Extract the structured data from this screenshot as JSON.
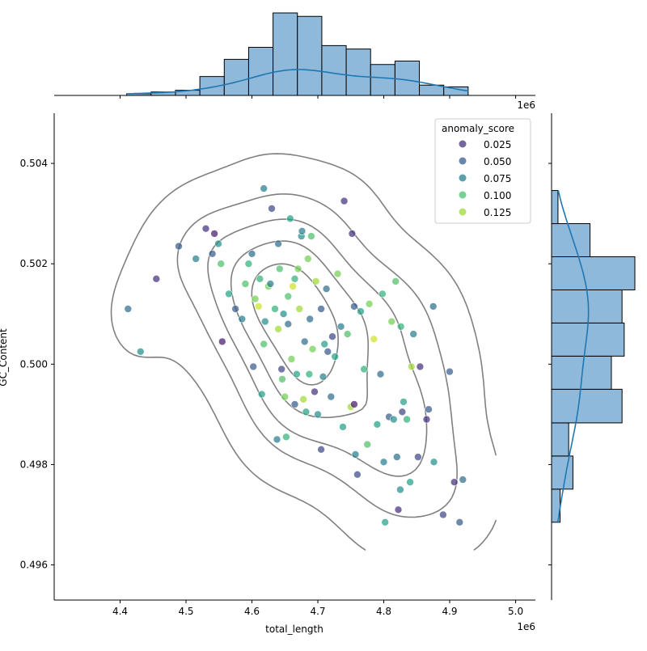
{
  "chart_data": {
    "type": "scatter",
    "subtype": "jointplot with kde contours and marginal histograms",
    "xlabel": "total_length",
    "ylabel": "GC_Content",
    "x_offset_label": "1e6",
    "xlim": [
      4.3,
      5.03
    ],
    "ylim": [
      0.4953,
      0.505
    ],
    "xticks": [
      4.4,
      4.5,
      4.6,
      4.7,
      4.8,
      4.9,
      5.0
    ],
    "xtick_labels": [
      "4.4",
      "4.5",
      "4.6",
      "4.7",
      "4.8",
      "4.9",
      "5.0"
    ],
    "yticks": [
      0.496,
      0.498,
      0.5,
      0.502,
      0.504
    ],
    "ytick_labels": [
      "0.496",
      "0.498",
      "0.500",
      "0.502",
      "0.504"
    ],
    "legend": {
      "title": "anomaly_score",
      "placement": "top-right",
      "entries": [
        {
          "label": "0.025",
          "color": "#46337e"
        },
        {
          "label": "0.050",
          "color": "#365c8d"
        },
        {
          "label": "0.075",
          "color": "#277f8e"
        },
        {
          "label": "0.100",
          "color": "#4ac16d"
        },
        {
          "label": "0.125",
          "color": "#a0da39"
        }
      ]
    },
    "colors": {
      "kde_contour": "#808080",
      "hist_fill": "#8fb9da",
      "hist_edge": "#000000",
      "marginal_kde": "#1f77b4"
    },
    "points": [
      [
        4.412,
        0.5011,
        0.06
      ],
      [
        4.431,
        0.50025,
        0.08
      ],
      [
        4.455,
        0.5017,
        0.03
      ],
      [
        4.489,
        0.50235,
        0.05
      ],
      [
        4.515,
        0.5021,
        0.07
      ],
      [
        4.53,
        0.5027,
        0.03
      ],
      [
        4.543,
        0.5026,
        0.02
      ],
      [
        4.54,
        0.5022,
        0.05
      ],
      [
        4.549,
        0.5024,
        0.08
      ],
      [
        4.553,
        0.502,
        0.11
      ],
      [
        4.555,
        0.50045,
        0.02
      ],
      [
        4.565,
        0.5014,
        0.09
      ],
      [
        4.575,
        0.5011,
        0.05
      ],
      [
        4.585,
        0.5009,
        0.07
      ],
      [
        4.59,
        0.5016,
        0.11
      ],
      [
        4.595,
        0.502,
        0.1
      ],
      [
        4.6,
        0.5022,
        0.06
      ],
      [
        4.602,
        0.49995,
        0.05
      ],
      [
        4.605,
        0.5013,
        0.12
      ],
      [
        4.61,
        0.50115,
        0.14
      ],
      [
        4.612,
        0.5017,
        0.1
      ],
      [
        4.615,
        0.4994,
        0.09
      ],
      [
        4.618,
        0.5004,
        0.11
      ],
      [
        4.62,
        0.50085,
        0.08
      ],
      [
        4.625,
        0.50155,
        0.12
      ],
      [
        4.628,
        0.5016,
        0.07
      ],
      [
        4.63,
        0.5031,
        0.04
      ],
      [
        4.618,
        0.5035,
        0.07
      ],
      [
        4.635,
        0.5011,
        0.1
      ],
      [
        4.638,
        0.4985,
        0.07
      ],
      [
        4.64,
        0.5024,
        0.06
      ],
      [
        4.64,
        0.5007,
        0.13
      ],
      [
        4.642,
        0.5019,
        0.11
      ],
      [
        4.645,
        0.4999,
        0.04
      ],
      [
        4.646,
        0.4997,
        0.11
      ],
      [
        4.648,
        0.501,
        0.08
      ],
      [
        4.65,
        0.49935,
        0.12
      ],
      [
        4.652,
        0.49855,
        0.1
      ],
      [
        4.655,
        0.5008,
        0.06
      ],
      [
        4.655,
        0.50135,
        0.11
      ],
      [
        4.658,
        0.5029,
        0.09
      ],
      [
        4.66,
        0.5001,
        0.12
      ],
      [
        4.662,
        0.50155,
        0.14
      ],
      [
        4.665,
        0.4992,
        0.05
      ],
      [
        4.665,
        0.5017,
        0.1
      ],
      [
        4.668,
        0.4998,
        0.09
      ],
      [
        4.67,
        0.5019,
        0.12
      ],
      [
        4.672,
        0.5011,
        0.13
      ],
      [
        4.675,
        0.50255,
        0.08
      ],
      [
        4.676,
        0.50265,
        0.07
      ],
      [
        4.678,
        0.4993,
        0.13
      ],
      [
        4.68,
        0.50045,
        0.06
      ],
      [
        4.682,
        0.49905,
        0.09
      ],
      [
        4.685,
        0.5021,
        0.12
      ],
      [
        4.687,
        0.4998,
        0.1
      ],
      [
        4.688,
        0.5009,
        0.06
      ],
      [
        4.69,
        0.50255,
        0.11
      ],
      [
        4.692,
        0.5003,
        0.12
      ],
      [
        4.695,
        0.49945,
        0.03
      ],
      [
        4.697,
        0.50165,
        0.13
      ],
      [
        4.7,
        0.499,
        0.08
      ],
      [
        4.705,
        0.4983,
        0.04
      ],
      [
        4.705,
        0.5011,
        0.05
      ],
      [
        4.708,
        0.49975,
        0.07
      ],
      [
        4.71,
        0.5004,
        0.09
      ],
      [
        4.713,
        0.5015,
        0.06
      ],
      [
        4.715,
        0.50025,
        0.05
      ],
      [
        4.72,
        0.49935,
        0.06
      ],
      [
        4.722,
        0.50055,
        0.04
      ],
      [
        4.726,
        0.50015,
        0.09
      ],
      [
        4.73,
        0.5018,
        0.12
      ],
      [
        4.735,
        0.50075,
        0.07
      ],
      [
        4.738,
        0.49875,
        0.09
      ],
      [
        4.74,
        0.50325,
        0.03
      ],
      [
        4.745,
        0.5006,
        0.11
      ],
      [
        4.75,
        0.49915,
        0.13
      ],
      [
        4.752,
        0.5026,
        0.03
      ],
      [
        4.755,
        0.4992,
        0.02
      ],
      [
        4.755,
        0.50115,
        0.05
      ],
      [
        4.757,
        0.4982,
        0.07
      ],
      [
        4.76,
        0.4978,
        0.04
      ],
      [
        4.765,
        0.50105,
        0.09
      ],
      [
        4.77,
        0.4999,
        0.1
      ],
      [
        4.775,
        0.4984,
        0.11
      ],
      [
        4.778,
        0.5012,
        0.12
      ],
      [
        4.785,
        0.5005,
        0.14
      ],
      [
        4.79,
        0.4988,
        0.09
      ],
      [
        4.795,
        0.4998,
        0.06
      ],
      [
        4.798,
        0.5014,
        0.1
      ],
      [
        4.8,
        0.49805,
        0.07
      ],
      [
        4.802,
        0.49685,
        0.09
      ],
      [
        4.808,
        0.49895,
        0.05
      ],
      [
        4.812,
        0.50085,
        0.12
      ],
      [
        4.815,
        0.4989,
        0.08
      ],
      [
        4.818,
        0.50165,
        0.11
      ],
      [
        4.82,
        0.49815,
        0.06
      ],
      [
        4.822,
        0.4971,
        0.03
      ],
      [
        4.825,
        0.4975,
        0.08
      ],
      [
        4.826,
        0.50075,
        0.1
      ],
      [
        4.828,
        0.49905,
        0.04
      ],
      [
        4.83,
        0.49925,
        0.09
      ],
      [
        4.835,
        0.4989,
        0.1
      ],
      [
        4.84,
        0.49765,
        0.09
      ],
      [
        4.842,
        0.49995,
        0.13
      ],
      [
        4.845,
        0.5006,
        0.07
      ],
      [
        4.852,
        0.49815,
        0.04
      ],
      [
        4.855,
        0.49995,
        0.03
      ],
      [
        4.865,
        0.4989,
        0.03
      ],
      [
        4.868,
        0.4991,
        0.05
      ],
      [
        4.875,
        0.50115,
        0.06
      ],
      [
        4.876,
        0.49805,
        0.08
      ],
      [
        4.89,
        0.497,
        0.04
      ],
      [
        4.9,
        0.49985,
        0.05
      ],
      [
        4.907,
        0.49765,
        0.03
      ],
      [
        4.915,
        0.49685,
        0.05
      ],
      [
        4.92,
        0.4977,
        0.06
      ]
    ],
    "x_hist": {
      "bin_edges": [
        4.41,
        4.447,
        4.484,
        4.521,
        4.558,
        4.595,
        4.632,
        4.669,
        4.706,
        4.743,
        4.78,
        4.817,
        4.854,
        4.891,
        4.928
      ],
      "counts": [
        1,
        2,
        3,
        11,
        21,
        28,
        48,
        46,
        29,
        27,
        18,
        20,
        6,
        5
      ]
    },
    "y_hist": {
      "bin_edges": [
        0.49685,
        0.49751,
        0.49817,
        0.49883,
        0.4995,
        0.50016,
        0.50082,
        0.50148,
        0.50214,
        0.5028,
        0.50346
      ],
      "counts": [
        4,
        10,
        8,
        33,
        28,
        34,
        33,
        39,
        18,
        3
      ]
    }
  }
}
